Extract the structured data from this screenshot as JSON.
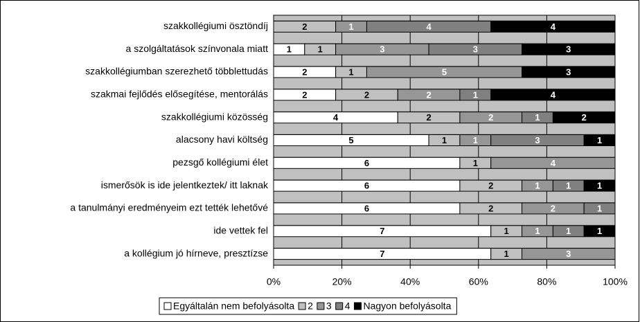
{
  "chart_data": {
    "type": "stacked_bar_percent",
    "orientation": "horizontal",
    "categories": [
      "szakkollégiumi ösztöndíj",
      "a szolgáltatások színvonala miatt",
      "szakkollégiumban szerezhető többlettudás",
      "szakmai fejlődés elősegítése, mentorálás",
      "szakkollégiumi közösség",
      "alacsony havi költség",
      "pezsgő kollégiumi élet",
      "ismerősök is ide jelentkeztek/ itt laknak",
      "a tanulmányi eredményeim ezt tették lehetővé",
      "ide vettek fel",
      "a kollégium jó hírneve, presztízse"
    ],
    "series": [
      {
        "name": "Egyáltalán nem befolyásolta",
        "color": "#ffffff",
        "values": [
          0,
          1,
          2,
          2,
          4,
          5,
          6,
          6,
          6,
          7,
          7
        ]
      },
      {
        "name": "2",
        "color": "#c0c0c0",
        "values": [
          2,
          1,
          1,
          2,
          2,
          1,
          1,
          2,
          2,
          1,
          1
        ]
      },
      {
        "name": "3",
        "color": "#969696",
        "values": [
          1,
          3,
          5,
          2,
          2,
          1,
          4,
          1,
          2,
          1,
          3
        ]
      },
      {
        "name": "4",
        "color": "#808080",
        "values": [
          4,
          3,
          0,
          1,
          1,
          3,
          0,
          1,
          1,
          1,
          0
        ]
      },
      {
        "name": "Nagyon befolyásolta",
        "color": "#000000",
        "values": [
          4,
          3,
          3,
          4,
          2,
          1,
          0,
          1,
          0,
          1,
          0
        ]
      }
    ],
    "xlim": [
      0,
      100
    ],
    "xticks": [
      {
        "value": 0,
        "label": "0%"
      },
      {
        "value": 20,
        "label": "20%"
      },
      {
        "value": 40,
        "label": "40%"
      },
      {
        "value": 60,
        "label": "60%"
      },
      {
        "value": 80,
        "label": "80%"
      },
      {
        "value": 100,
        "label": "100%"
      }
    ],
    "grid": true,
    "legend": "bottom"
  }
}
